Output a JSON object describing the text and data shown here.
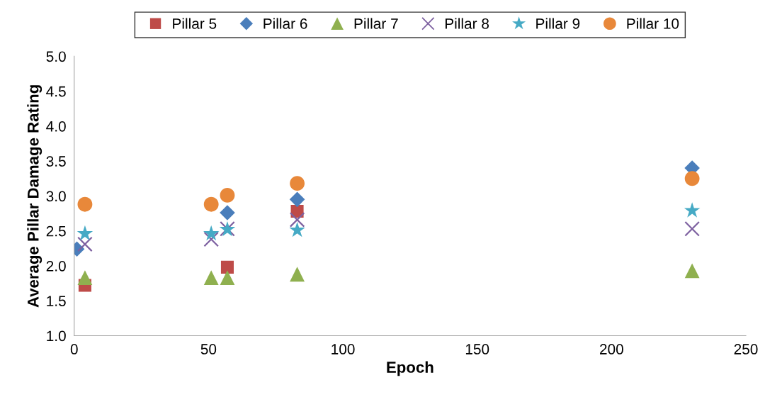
{
  "chart_data": {
    "type": "scatter",
    "xlabel": "Epoch",
    "ylabel": "Average Pillar Damage Rating",
    "xlim": [
      0,
      250
    ],
    "xticks": [
      0,
      50,
      100,
      150,
      200,
      250
    ],
    "ylim": [
      1.0,
      5.0
    ],
    "yticks": [
      {
        "value": 1.0,
        "label": "1.0"
      },
      {
        "value": 1.5,
        "label": "1.5"
      },
      {
        "value": 2.0,
        "label": "2.0"
      },
      {
        "value": 2.5,
        "label": "2.5"
      },
      {
        "value": 3.0,
        "label": "3.0"
      },
      {
        "value": 3.5,
        "label": "3.5"
      },
      {
        "value": 4.0,
        "label": "4.0"
      },
      {
        "value": 4.5,
        "label": "4.5"
      },
      {
        "value": 5.0,
        "label": "5.0"
      }
    ],
    "grid": false,
    "legend": "top",
    "series": [
      {
        "name": "Pillar 5",
        "color": "#be4b48",
        "marker": "square",
        "x": [
          4,
          57,
          83
        ],
        "values": [
          1.72,
          1.98,
          2.78
        ]
      },
      {
        "name": "Pillar 6",
        "color": "#4a7ebb",
        "marker": "diamond",
        "x": [
          1,
          57,
          83,
          230
        ],
        "values": [
          2.24,
          2.76,
          2.95,
          3.4
        ]
      },
      {
        "name": "Pillar 7",
        "color": "#8fb04f",
        "marker": "triangle",
        "x": [
          4,
          51,
          57,
          83,
          230
        ],
        "values": [
          1.83,
          1.83,
          1.83,
          1.88,
          1.93
        ]
      },
      {
        "name": "Pillar 8",
        "color": "#7d60a0",
        "marker": "cross",
        "x": [
          4,
          51,
          57,
          83,
          230
        ],
        "values": [
          2.31,
          2.38,
          2.53,
          2.66,
          2.53
        ]
      },
      {
        "name": "Pillar 9",
        "color": "#46aac5",
        "marker": "star",
        "x": [
          4,
          51,
          57,
          83,
          230
        ],
        "values": [
          2.46,
          2.46,
          2.52,
          2.51,
          2.79
        ]
      },
      {
        "name": "Pillar 10",
        "color": "#e8883a",
        "marker": "circle",
        "x": [
          4,
          51,
          57,
          83,
          230
        ],
        "values": [
          2.88,
          2.88,
          3.01,
          3.18,
          3.25
        ]
      }
    ]
  }
}
